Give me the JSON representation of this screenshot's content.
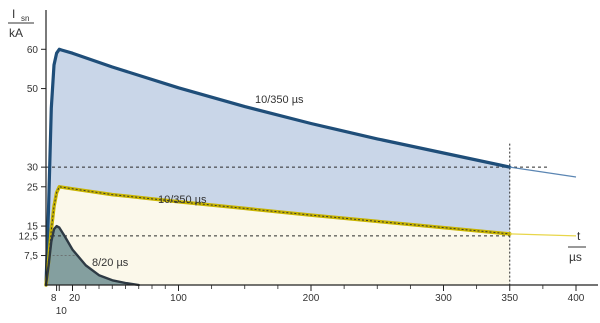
{
  "chart_data": {
    "type": "area",
    "y_axis_label_top": "I",
    "y_axis_label_subscript": "sn",
    "y_axis_label_unit": "kA",
    "x_axis_label_top": "t",
    "x_axis_label_unit": "µs",
    "xlim": [
      0,
      400
    ],
    "ylim": [
      0,
      70
    ],
    "x_ticks": [
      {
        "value": 8,
        "label": "8"
      },
      {
        "value": 10,
        "label": "10"
      },
      {
        "value": 20,
        "label": "20"
      },
      {
        "value": 100,
        "label": "100"
      },
      {
        "value": 200,
        "label": "200"
      },
      {
        "value": 300,
        "label": "300"
      },
      {
        "value": 350,
        "label": "350"
      },
      {
        "value": 400,
        "label": "400"
      }
    ],
    "y_ticks": [
      {
        "value": 7.5,
        "label": "7,5"
      },
      {
        "value": 12.5,
        "label": "12,5"
      },
      {
        "value": 15,
        "label": "15"
      },
      {
        "value": 25,
        "label": "25"
      },
      {
        "value": 30,
        "label": "30"
      },
      {
        "value": 50,
        "label": "50"
      },
      {
        "value": 60,
        "label": "60"
      }
    ],
    "reference_lines": [
      {
        "axis": "y",
        "value": 30
      },
      {
        "axis": "y",
        "value": 12.5
      },
      {
        "axis": "x",
        "value": 350
      }
    ],
    "series": [
      {
        "name": "10/350 µs",
        "color": "#1f4e79",
        "fill": "#c9d6e8",
        "peak": 60,
        "points": [
          [
            0,
            0
          ],
          [
            2,
            20
          ],
          [
            4,
            45
          ],
          [
            6,
            56
          ],
          [
            8,
            59
          ],
          [
            10,
            60
          ],
          [
            12,
            59.8
          ],
          [
            20,
            59
          ],
          [
            50,
            55.5
          ],
          [
            100,
            50.2
          ],
          [
            150,
            45.4
          ],
          [
            200,
            41.1
          ],
          [
            250,
            37.2
          ],
          [
            300,
            33.6
          ],
          [
            350,
            30
          ],
          [
            400,
            27.5
          ]
        ]
      },
      {
        "name": "10/350 µs",
        "color": "#c8b400",
        "fill": "#fbf8ea",
        "peak": 25,
        "points": [
          [
            0,
            0
          ],
          [
            2,
            6
          ],
          [
            4,
            14
          ],
          [
            6,
            20
          ],
          [
            8,
            23.5
          ],
          [
            10,
            25
          ],
          [
            12,
            24.9
          ],
          [
            20,
            24.5
          ],
          [
            50,
            23
          ],
          [
            100,
            21.2
          ],
          [
            150,
            19.5
          ],
          [
            200,
            17.8
          ],
          [
            250,
            16.2
          ],
          [
            300,
            14.6
          ],
          [
            350,
            13
          ],
          [
            400,
            12.5
          ]
        ]
      },
      {
        "name": "8/20 µs",
        "color": "#2e3a44",
        "fill": "#6f8f92",
        "peak": 15,
        "points": [
          [
            0,
            0
          ],
          [
            2,
            5
          ],
          [
            4,
            11
          ],
          [
            6,
            14.2
          ],
          [
            8,
            15
          ],
          [
            10,
            14.6
          ],
          [
            14,
            12.5
          ],
          [
            20,
            9
          ],
          [
            30,
            5
          ],
          [
            40,
            2.5
          ],
          [
            50,
            1.2
          ],
          [
            60,
            0.5
          ],
          [
            70,
            0
          ]
        ]
      }
    ]
  }
}
